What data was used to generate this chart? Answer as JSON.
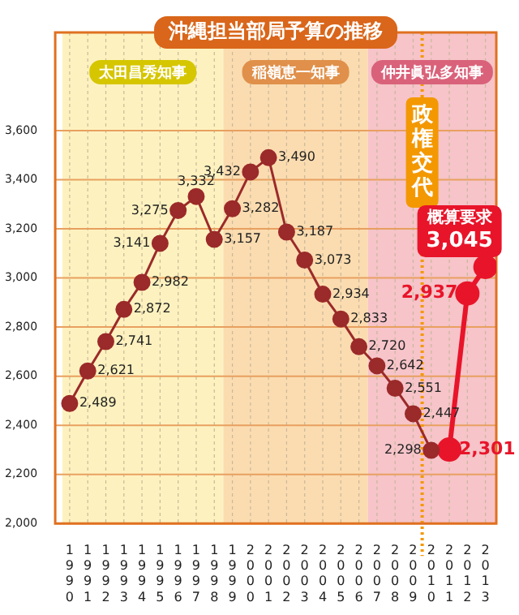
{
  "chart_data": {
    "type": "line",
    "title": "沖縄担当部局予算の推移",
    "x": [
      1990,
      1991,
      1992,
      1993,
      1994,
      1995,
      1996,
      1997,
      1998,
      1999,
      2000,
      2001,
      2002,
      2003,
      2004,
      2005,
      2006,
      2007,
      2008,
      2009,
      2010,
      2011,
      2012,
      2013
    ],
    "xlim": [
      1989.2,
      2013.6
    ],
    "xticks": [
      {
        "value": 1990,
        "label": "1990"
      },
      {
        "value": 1991,
        "label": "1991"
      },
      {
        "value": 1992,
        "label": "1992"
      },
      {
        "value": 1993,
        "label": "1993"
      },
      {
        "value": 1994,
        "label": "1994"
      },
      {
        "value": 1995,
        "label": "1995"
      },
      {
        "value": 1996,
        "label": "1996"
      },
      {
        "value": 1997,
        "label": "1997"
      },
      {
        "value": 1998,
        "label": "1998"
      },
      {
        "value": 1999,
        "label": "1999"
      },
      {
        "value": 2000,
        "label": "2000"
      },
      {
        "value": 2001,
        "label": "2001"
      },
      {
        "value": 2002,
        "label": "2002"
      },
      {
        "value": 2003,
        "label": "2003"
      },
      {
        "value": 2004,
        "label": "2004"
      },
      {
        "value": 2005,
        "label": "2005"
      },
      {
        "value": 2006,
        "label": "2006"
      },
      {
        "value": 2007,
        "label": "2007"
      },
      {
        "value": 2008,
        "label": "2008"
      },
      {
        "value": 2009,
        "label": "2009"
      },
      {
        "value": 2010,
        "label": "2010"
      },
      {
        "value": 2011,
        "label": "2011"
      },
      {
        "value": 2012,
        "label": "2012"
      },
      {
        "value": 2013,
        "label": "2013"
      }
    ],
    "ylim": [
      2000,
      4000
    ],
    "yticks": [
      {
        "value": 2000,
        "label": "2,000"
      },
      {
        "value": 2200,
        "label": "2,200"
      },
      {
        "value": 2400,
        "label": "2,400"
      },
      {
        "value": 2600,
        "label": "2,600"
      },
      {
        "value": 2800,
        "label": "2,800"
      },
      {
        "value": 3000,
        "label": "3,000"
      },
      {
        "value": 3200,
        "label": "3,200"
      },
      {
        "value": 3400,
        "label": "3,400"
      },
      {
        "value": 3600,
        "label": "3,600"
      }
    ],
    "series": [
      {
        "color": "#9b2a2a",
        "values": [
          2489,
          2621,
          2741,
          2872,
          2982,
          3141,
          3275,
          3332,
          3157,
          3282,
          3432,
          3490,
          3187,
          3073,
          2934,
          2833,
          2720,
          2642,
          2551,
          2447,
          2298,
          null,
          null,
          null
        ],
        "value_labels": [
          "2,489",
          "2,621",
          "2,741",
          "2,872",
          "2,982",
          "3,141",
          "3,275",
          "3,332",
          "3,157",
          "3,282",
          "3,432",
          "3,490",
          "3,187",
          "3,073",
          "2,934",
          "2,833",
          "2,720",
          "2,642",
          "2,551",
          "2,447",
          "2,298",
          null,
          null,
          null
        ]
      },
      {
        "color": "#e8142a",
        "values": [
          null,
          null,
          null,
          null,
          null,
          null,
          null,
          null,
          null,
          null,
          null,
          null,
          null,
          null,
          null,
          null,
          null,
          null,
          null,
          null,
          null,
          2301,
          2937,
          3045
        ],
        "value_labels": [
          null,
          null,
          null,
          null,
          null,
          null,
          null,
          null,
          null,
          null,
          null,
          null,
          null,
          null,
          null,
          null,
          null,
          null,
          null,
          null,
          null,
          "2,301",
          "2,937",
          "3,045"
        ]
      }
    ],
    "bands": [
      {
        "axis": "x",
        "from": 1989.6,
        "to": 1998.5,
        "label": "太田昌秀知事",
        "color": "#fdf2bf"
      },
      {
        "axis": "x",
        "from": 1998.5,
        "to": 2006.5,
        "label": "稲嶺恵一知事",
        "color": "#fbdcb0"
      },
      {
        "axis": "x",
        "from": 2006.5,
        "to": 2013.6,
        "label": "仲井眞弘多知事",
        "color": "#f6c4c9"
      }
    ],
    "ref_lines": [
      {
        "axis": "x",
        "value": 2009.5,
        "label": "政権交代",
        "color": "#f39800",
        "line_style": "dotted"
      }
    ],
    "annotations": [
      {
        "text": "概算要求",
        "x": 2013,
        "y": 3045
      }
    ],
    "grid": true,
    "legend": false,
    "marker": "circle",
    "line_style": "solid"
  }
}
